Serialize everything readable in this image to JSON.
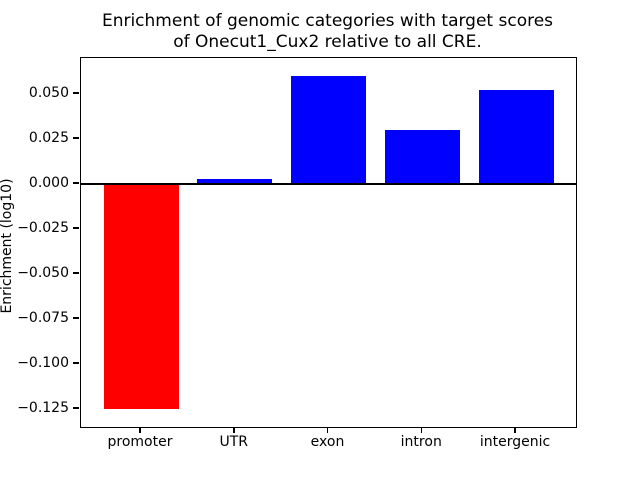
{
  "figure": {
    "background": "#ffffff",
    "text_color": "#000000"
  },
  "chart_data": {
    "type": "bar",
    "title": "Enrichment of genomic categories with target scores\nof Onecut1_Cux2 relative to all CRE.",
    "xlabel": "",
    "ylabel": "Enrichment (log10)",
    "categories": [
      "promoter",
      "UTR",
      "exon",
      "intron",
      "intergenic"
    ],
    "values": [
      -0.125,
      0.003,
      0.06,
      0.03,
      0.052
    ],
    "bar_colors": [
      "#ff0000",
      "#0000ff",
      "#0000ff",
      "#0000ff",
      "#0000ff"
    ],
    "bar_width": 0.8,
    "ylim": [
      -0.135,
      0.07
    ],
    "xlim": [
      -0.64,
      4.64
    ],
    "yticks": [
      0.05,
      0.025,
      0.0,
      -0.025,
      -0.05,
      -0.075,
      -0.1,
      -0.125
    ],
    "ytick_labels": [
      "0.050",
      "0.025",
      "0.000",
      "−0.025",
      "−0.050",
      "−0.075",
      "−0.100",
      "−0.125"
    ],
    "grid": false,
    "legend": null,
    "zero_line": true
  }
}
